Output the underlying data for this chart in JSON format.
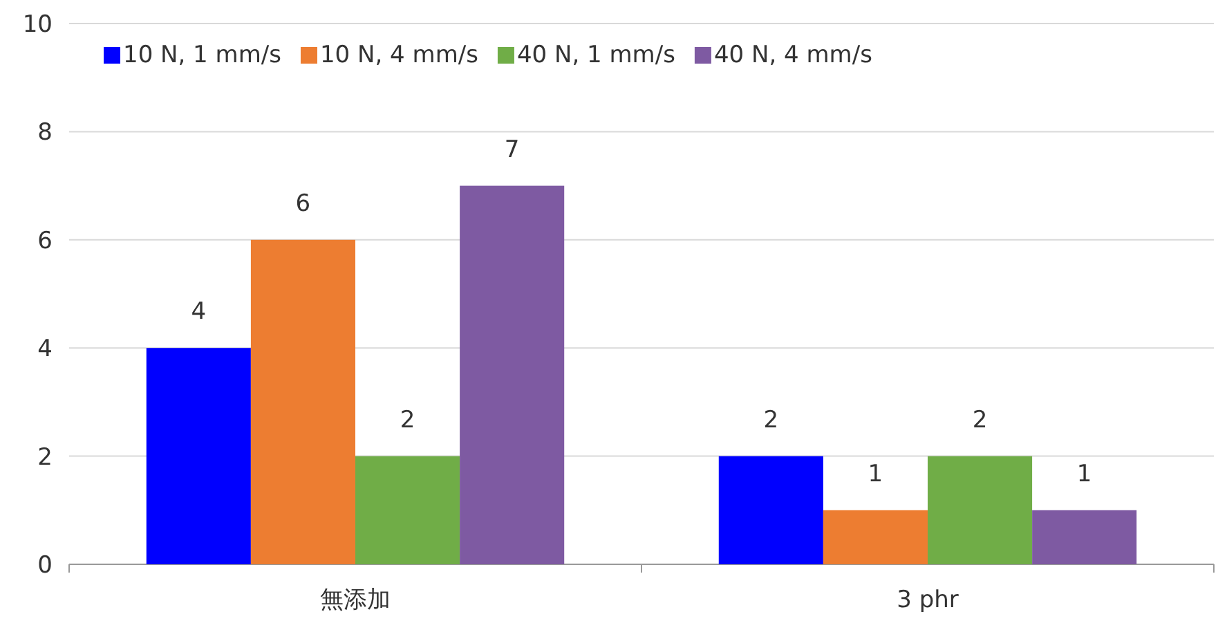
{
  "chart_data": {
    "type": "bar",
    "categories": [
      "無添加",
      "3 phr"
    ],
    "series": [
      {
        "name": "10 N, 1 mm/s",
        "color": "#0000ff",
        "values": [
          4,
          2
        ]
      },
      {
        "name": "10 N, 4 mm/s",
        "color": "#ed7d31",
        "values": [
          6,
          1
        ]
      },
      {
        "name": "40 N, 1 mm/s",
        "color": "#70ad47",
        "values": [
          2,
          2
        ]
      },
      {
        "name": "40 N, 4 mm/s",
        "color": "#7e5aa2",
        "values": [
          7,
          1
        ]
      }
    ],
    "ylim": [
      0,
      10
    ],
    "yticks": [
      0,
      2,
      4,
      6,
      8,
      10
    ],
    "grid": "y",
    "legend": "top",
    "data_labels": true
  }
}
